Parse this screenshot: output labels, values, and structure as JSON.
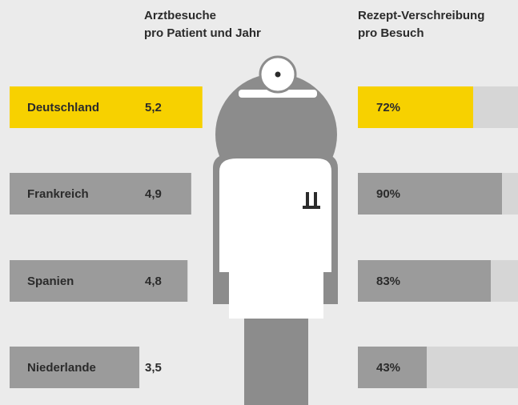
{
  "chart_data": [
    {
      "type": "bar",
      "title": [
        "Arztbesuche",
        "pro Patient und Jahr"
      ],
      "categories": [
        "Deutschland",
        "Frankreich",
        "Spanien",
        "Niederlande"
      ],
      "values": [
        5.2,
        4.9,
        4.8,
        3.5
      ],
      "value_labels": [
        "5,2",
        "4,9",
        "4,8",
        "3,5"
      ],
      "colors": [
        "#f7d100",
        "#9b9b9b",
        "#9b9b9b",
        "#9b9b9b"
      ]
    },
    {
      "type": "progress",
      "title": [
        "Rezept-Verschreibung",
        "pro Besuch"
      ],
      "values": [
        72,
        90,
        83,
        43
      ],
      "value_labels": [
        "72%",
        "90%",
        "83%",
        "43%"
      ],
      "colors": [
        "#f7d100",
        "#9b9b9b",
        "#9b9b9b",
        "#9b9b9b"
      ],
      "track_color": "#d6d6d6",
      "xlim": [
        0,
        100
      ]
    }
  ]
}
